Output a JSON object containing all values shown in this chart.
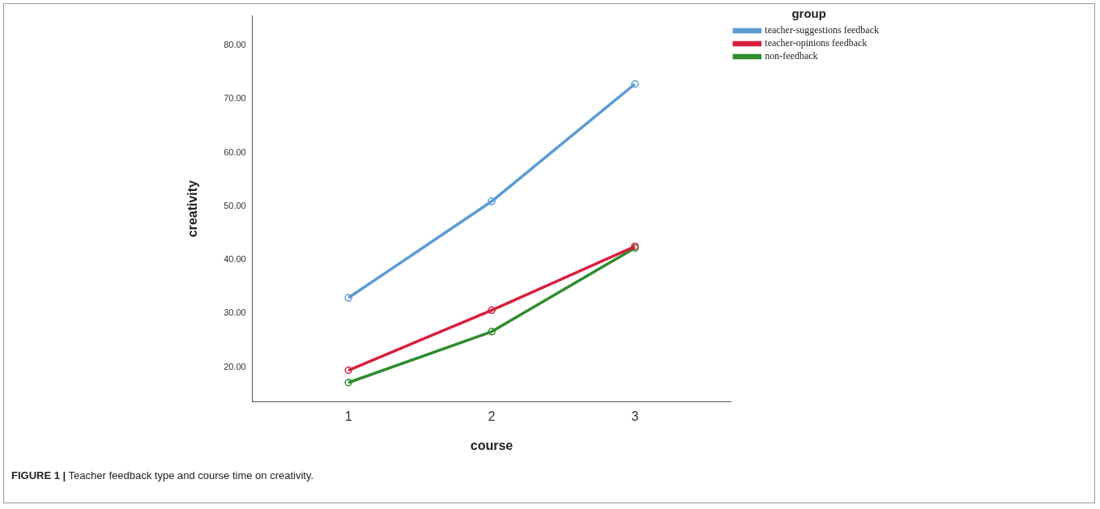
{
  "chart_data": {
    "type": "line",
    "xlabel": "course",
    "ylabel": "creativity",
    "legend_title": "group",
    "x": [
      1,
      2,
      3
    ],
    "series": [
      {
        "name": "teacher-suggestions feedback",
        "color": "#5b9bd5",
        "values": [
          32.9,
          50.9,
          72.8
        ]
      },
      {
        "name": "teacher-opinions feedback",
        "color": "#d81e3c",
        "values": [
          19.4,
          30.6,
          42.5
        ]
      },
      {
        "name": "non-feedback",
        "color": "#2e8b2e",
        "values": [
          17.1,
          26.6,
          42.2
        ]
      }
    ],
    "xlim": [
      0.33,
      3.67
    ],
    "xticks": [
      1,
      2,
      3
    ],
    "ylim": [
      13.5,
      85.5
    ],
    "yticks": [
      {
        "value": 20,
        "label": "20.00"
      },
      {
        "value": 30,
        "label": "30.00"
      },
      {
        "value": 40,
        "label": "40.00"
      },
      {
        "value": 50,
        "label": "50.00"
      },
      {
        "value": 60,
        "label": "60.00"
      },
      {
        "value": 70,
        "label": "70.00"
      },
      {
        "value": 80,
        "label": "80.00"
      }
    ],
    "grid": false,
    "legend": "top right",
    "marker": "circle",
    "line_style": "solid",
    "annotations": [
      "FIGURE 1 | Teacher feedback type and course time on creativity."
    ]
  }
}
